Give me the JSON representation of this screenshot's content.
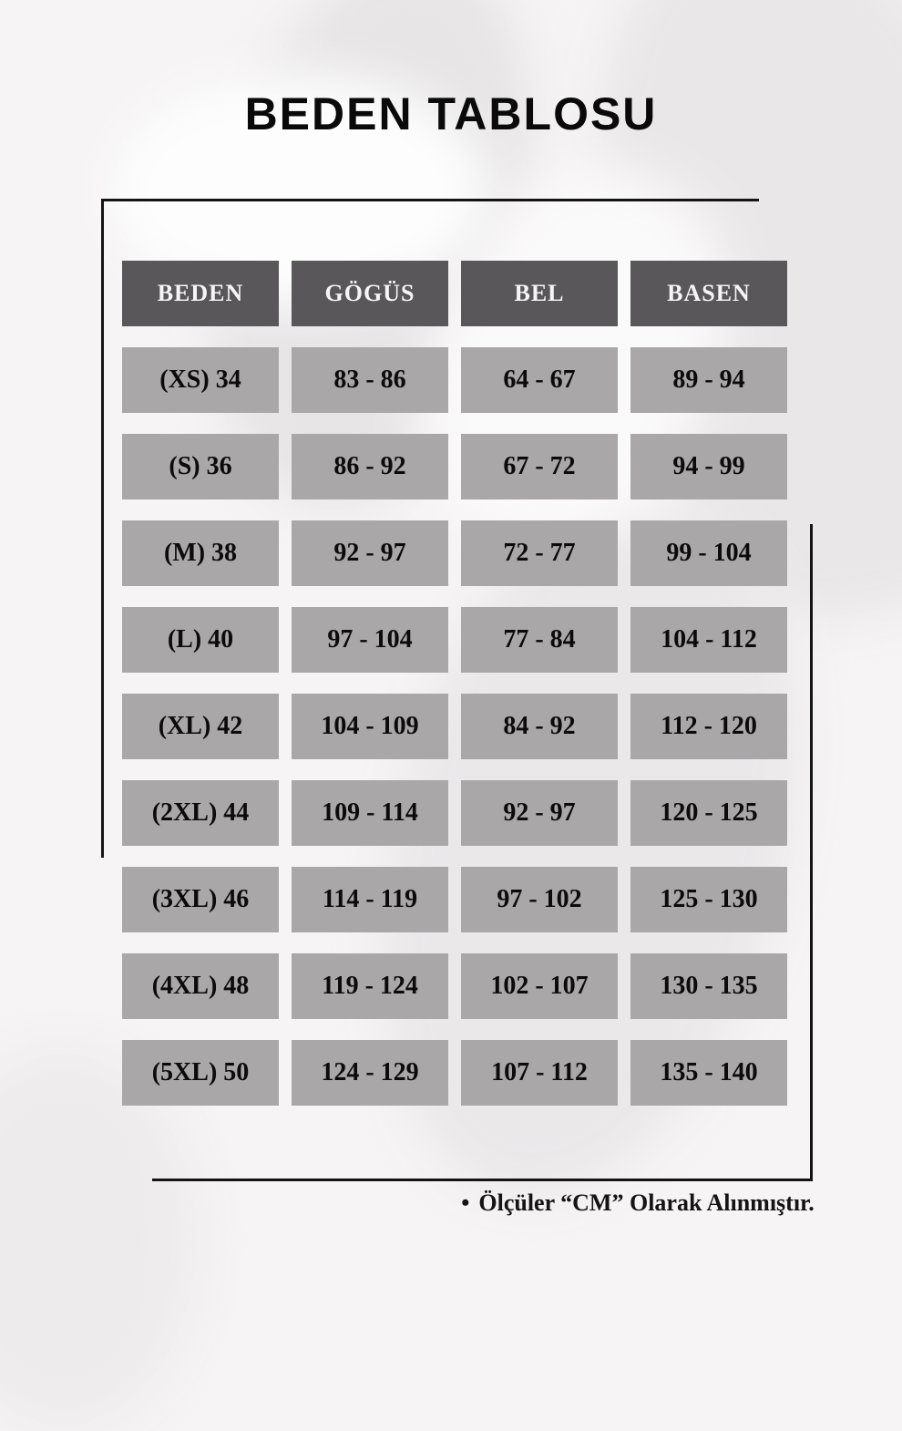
{
  "page": {
    "title": "BEDEN TABLOSU",
    "note_bullet": "•",
    "note_text": "Ölçüler “CM” Olarak Alınmıştır."
  },
  "size_table": {
    "headers": [
      "BEDEN",
      "GÖGÜS",
      "BEL",
      "BASEN"
    ],
    "rows": [
      [
        "(XS) 34",
        "83 - 86",
        "64 - 67",
        "89 - 94"
      ],
      [
        "(S) 36",
        "86 - 92",
        "67 - 72",
        "94 - 99"
      ],
      [
        "(M) 38",
        "92 - 97",
        "72 - 77",
        "99 - 104"
      ],
      [
        "(L) 40",
        "97 - 104",
        "77 - 84",
        "104 - 112"
      ],
      [
        "(XL) 42",
        "104 - 109",
        "84 - 92",
        "112 - 120"
      ],
      [
        "(2XL) 44",
        "109 - 114",
        "92 - 97",
        "120 - 125"
      ],
      [
        "(3XL) 46",
        "114 - 119",
        "97 - 102",
        "125 - 130"
      ],
      [
        "(4XL) 48",
        "119 - 124",
        "102 - 107",
        "130 - 135"
      ],
      [
        "(5XL) 50",
        "124 - 129",
        "107 - 112",
        "135 - 140"
      ]
    ]
  },
  "colors": {
    "header_bg": "#595759",
    "header_text": "#f6f5f6",
    "cell_bg": "#a9a7a8",
    "cell_text": "#0c0b0c",
    "frame": "#141414",
    "title_text": "#0a0a0a"
  }
}
